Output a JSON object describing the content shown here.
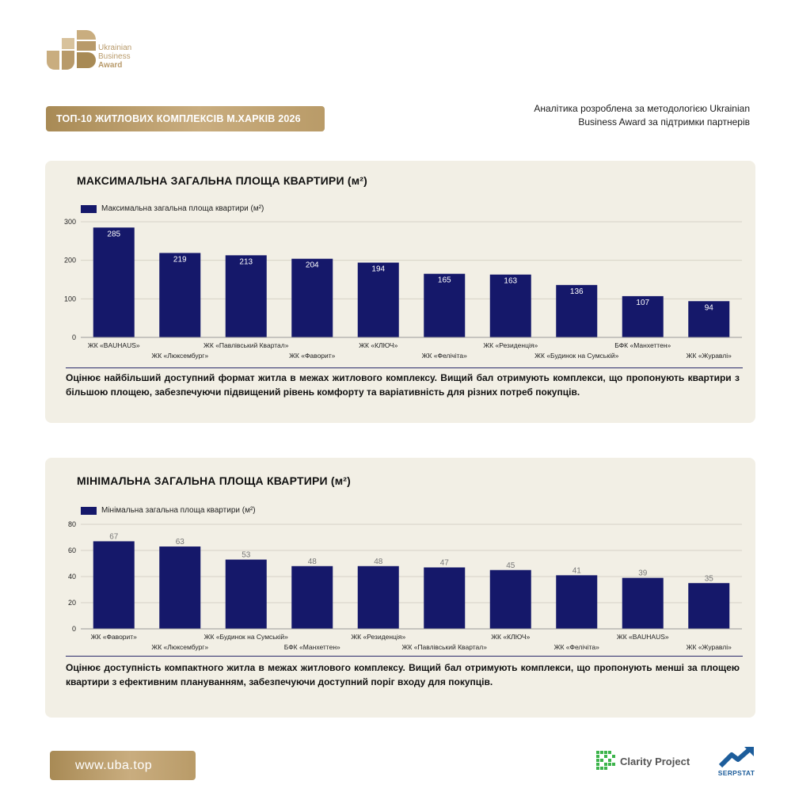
{
  "logo": {
    "line1": "Ukrainian",
    "line2": "Business",
    "line3": "Award",
    "color": "#b89a6a"
  },
  "header": {
    "title": "ТОП-10 ЖИТЛОВИХ КОМПЛЕКСІВ М.ХАРКІВ 2026",
    "note": "Аналітика розроблена за методологією Ukrainian Business Award за підтримки партнерів"
  },
  "section_max": {
    "title": "МАКСИМАЛЬНА ЗАГАЛЬНА ПЛОЩА КВАРТИРИ (м²)",
    "legend": "Максимальна загальна площа квартири (м²)",
    "description": "Оцінює найбільший доступний формат житла в межах житлового комплексу. Вищий бал отримують комплекси, що пропонують квартири з більшою площею, забезпечуючи підвищений рівень комфорту та варіативність для різних потреб покупців."
  },
  "section_min": {
    "title": "МІНІМАЛЬНА ЗАГАЛЬНА ПЛОЩА КВАРТИРИ (м²)",
    "legend": "Мінімальна загальна площа квартири (м²)",
    "description": "Оцінює доступність компактного житла в межах житлового комплексу. Вищий бал отримують комплекси, що пропонують менші за площею квартири з ефективним плануванням, забезпечуючи доступний поріг входу для покупців."
  },
  "chart_data": [
    {
      "type": "bar",
      "title": "МАКСИМАЛЬНА ЗАГАЛЬНА ПЛОЩА КВАРТИРИ (м²)",
      "categories": [
        "ЖК «BAUHAUS»",
        "ЖК «Люксембург»",
        "ЖК «Павлівський Квартал»",
        "ЖК «Фаворит»",
        "ЖК «КЛЮЧ»",
        "ЖК «Фелічіта»",
        "ЖК «Резиденція»",
        "ЖК «Будинок на Сумській»",
        "БФК «Манхеттен»",
        "ЖК «Журавлі»"
      ],
      "series": [
        {
          "name": "Максимальна загальна площа квартири (м²)",
          "values": [
            285,
            219,
            213,
            204,
            194,
            165,
            163,
            136,
            107,
            94
          ]
        }
      ],
      "yticks": [
        0,
        100,
        200,
        300
      ],
      "ylim": [
        0,
        300
      ],
      "grid": true,
      "legend": "top-left",
      "label_position": "inside",
      "bar_color": "#15186a",
      "label_color": "#ffffff"
    },
    {
      "type": "bar",
      "title": "МІНІМАЛЬНА ЗАГАЛЬНА ПЛОЩА КВАРТИРИ (м²)",
      "categories": [
        "ЖК «Фаворит»",
        "ЖК «Люксембург»",
        "ЖК «Будинок на Сумській»",
        "БФК «Манхеттен»",
        "ЖК «Резиденція»",
        "ЖК «Павлівський Квартал»",
        "ЖК «КЛЮЧ»",
        "ЖК «Фелічіта»",
        "ЖК «BAUHAUS»",
        "ЖК «Журавлі»"
      ],
      "series": [
        {
          "name": "Мінімальна загальна площа квартири (м²)",
          "values": [
            67,
            63,
            53,
            48,
            48,
            47,
            45,
            41,
            39,
            35
          ]
        }
      ],
      "yticks": [
        0,
        20,
        40,
        60,
        80
      ],
      "ylim": [
        0,
        80
      ],
      "grid": true,
      "legend": "top-left",
      "label_position": "above",
      "bar_color": "#15186a",
      "label_color": "#777777"
    }
  ],
  "footer": {
    "site": "www.uba.top",
    "partner1": "Clarity Project",
    "partner2": "SERPSTAT"
  },
  "colors": {
    "gold": "#b89a6a",
    "panel_bg": "#f2efe5",
    "bar": "#15186a"
  }
}
